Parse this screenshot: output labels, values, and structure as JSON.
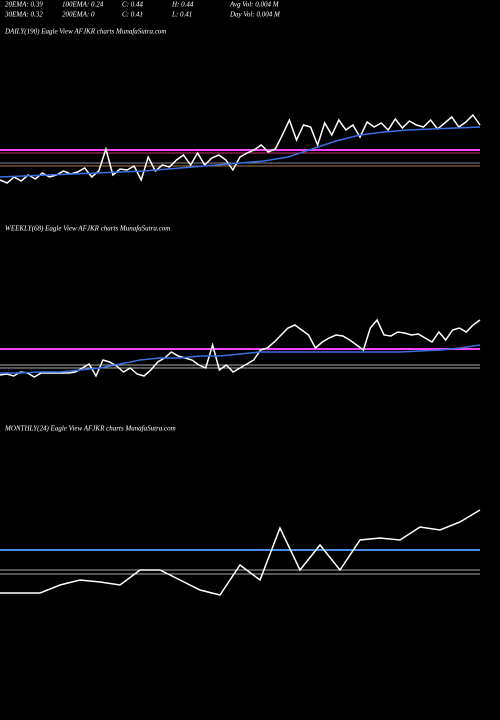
{
  "header": {
    "row1": [
      "20EMA: 0.39",
      "100EMA: 0.24",
      "C: 0.44",
      "H: 0.44",
      "Avg Vol: 0.004  M"
    ],
    "row2": [
      "30EMA: 0.32",
      "200EMA: 0",
      "C: 0.41",
      "L: 0.41",
      "Day Vol: 0.004  M"
    ]
  },
  "chart_data": [
    {
      "type": "line",
      "title": "DAILY(190) Eagle  View  AFJKR charts MunafaSutra.com",
      "ylim": [
        0,
        175
      ],
      "series": [
        {
          "name": "Price",
          "color": "#ffffff",
          "values": [
            35,
            32,
            38,
            34,
            40,
            36,
            42,
            38,
            40,
            44,
            41,
            43,
            47,
            38,
            44,
            66,
            40,
            46,
            45,
            49,
            35,
            58,
            44,
            50,
            48,
            55,
            60,
            50,
            62,
            50,
            57,
            60,
            55,
            45,
            58,
            62,
            65,
            70,
            63,
            66,
            80,
            95,
            75,
            90,
            88,
            70,
            92,
            80,
            95,
            85,
            90,
            78,
            93,
            88,
            92,
            85,
            96,
            87,
            94,
            90,
            88,
            95,
            86,
            92,
            98,
            88,
            93,
            100,
            90
          ]
        },
        {
          "name": "EMA",
          "color": "#3a6fe0",
          "values": [
            38,
            39,
            40,
            41,
            42,
            43,
            44,
            46,
            48,
            50,
            52,
            54,
            58,
            66,
            74,
            80,
            83,
            85,
            86,
            87,
            88
          ]
        }
      ],
      "hlines": [
        {
          "value": 65,
          "color": "#ff44ff"
        },
        {
          "value": 62,
          "color": "#cc3366"
        },
        {
          "value": 52,
          "color": "#888888"
        },
        {
          "value": 49,
          "color": "#aa7744"
        }
      ]
    },
    {
      "type": "line",
      "title": "WEEKLY(68) Eagle  View  AFJKR charts MunafaSutra.com",
      "ylim": [
        0,
        195
      ],
      "series": [
        {
          "name": "Price",
          "color": "#ffffff",
          "values": [
            45,
            46,
            44,
            48,
            47,
            43,
            47,
            47,
            47,
            47,
            47,
            48,
            52,
            56,
            44,
            60,
            58,
            54,
            48,
            52,
            46,
            44,
            50,
            58,
            62,
            68,
            64,
            62,
            60,
            55,
            52,
            75,
            50,
            55,
            48,
            52,
            56,
            60,
            70,
            72,
            78,
            85,
            92,
            95,
            90,
            85,
            72,
            78,
            82,
            85,
            84,
            80,
            75,
            70,
            92,
            100,
            85,
            84,
            88,
            87,
            85,
            86,
            82,
            78,
            88,
            80,
            90,
            92,
            88,
            95,
            100
          ]
        },
        {
          "name": "EMA",
          "color": "#3a6fe0",
          "values": [
            47,
            47,
            48,
            48,
            50,
            52,
            56,
            60,
            62,
            62,
            64,
            64,
            66,
            68,
            68,
            68,
            68,
            68,
            68,
            68,
            68,
            69,
            70,
            72,
            75
          ]
        }
      ],
      "hlines": [
        {
          "value": 71,
          "color": "#ff44ff"
        },
        {
          "value": 55,
          "color": "#aaaaaa"
        },
        {
          "value": 52,
          "color": "#aaaaaa"
        }
      ]
    },
    {
      "type": "line",
      "title": "MONTHLY(24) Eagle  View  AFJKR charts MunafaSutra.com",
      "ylim": [
        0,
        295
      ],
      "series": [
        {
          "name": "Price",
          "color": "#ffffff",
          "values": [
            127,
            127,
            127,
            135,
            140,
            138,
            135,
            150,
            150,
            140,
            130,
            125,
            155,
            140,
            192,
            150,
            175,
            150,
            180,
            182,
            180,
            193,
            190,
            198,
            210
          ]
        }
      ],
      "hlines": [
        {
          "value": 170,
          "color": "#4a8af0"
        },
        {
          "value": 150,
          "color": "#aaaaaa"
        },
        {
          "value": 146,
          "color": "#aaaaaa"
        }
      ]
    }
  ]
}
